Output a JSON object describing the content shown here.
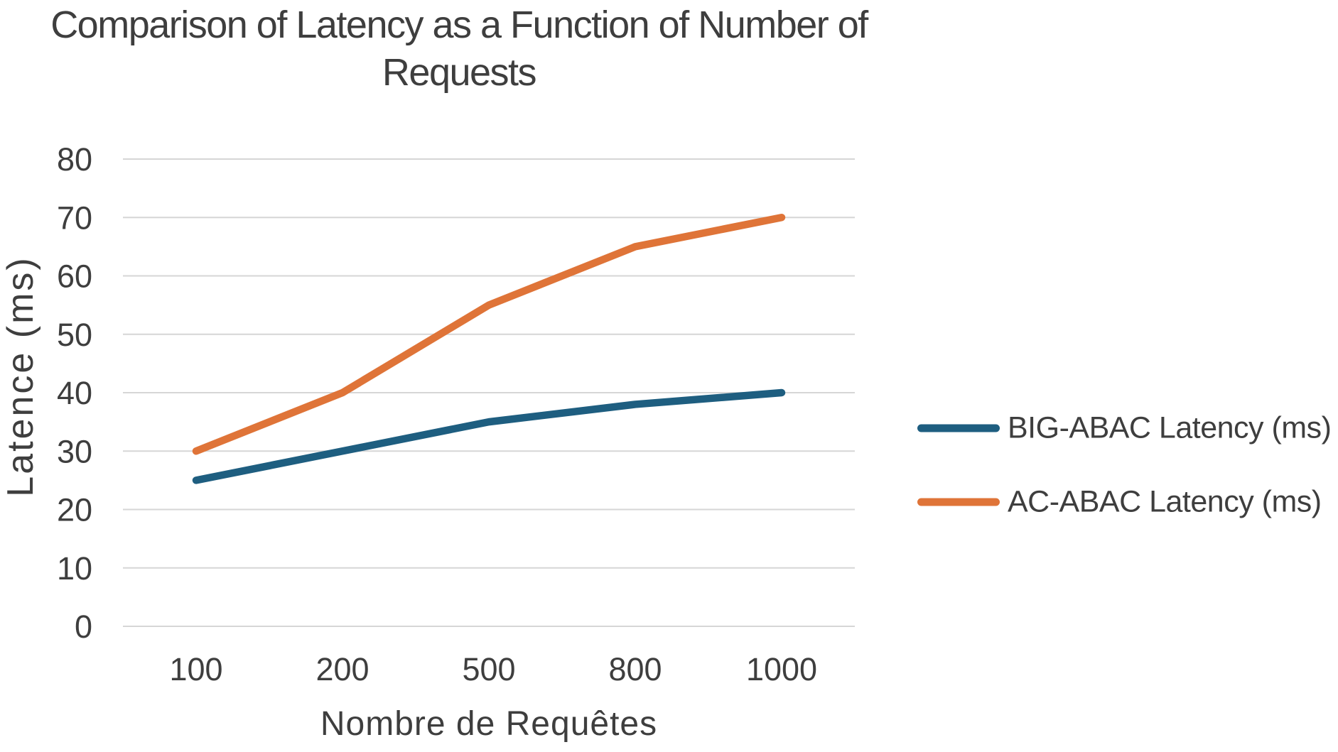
{
  "chart": {
    "title_lines": [
      "Comparison of Latency as a Function of Number of",
      "Requests"
    ],
    "x_axis_title": "Nombre de Requêtes",
    "y_axis_title": "Latence (ms)"
  },
  "legend": {
    "position": "right",
    "items": [
      {
        "label": "BIG-ABAC Latency (ms)",
        "color": "#1E5E80"
      },
      {
        "label": "AC-ABAC Latency (ms)",
        "color": "#DF7438"
      }
    ]
  },
  "chart_data": {
    "type": "line",
    "title": "Comparison of Latency as a Function of Number of Requests",
    "xlabel": "Nombre de Requêtes",
    "ylabel": "Latence (ms)",
    "categories": [
      "100",
      "200",
      "500",
      "800",
      "1000"
    ],
    "series": [
      {
        "name": "BIG-ABAC Latency (ms)",
        "color": "#1E5E80",
        "values": [
          25,
          30,
          35,
          38,
          40
        ]
      },
      {
        "name": "AC-ABAC Latency (ms)",
        "color": "#DF7438",
        "values": [
          30,
          40,
          55,
          65,
          70
        ]
      }
    ],
    "ylim": [
      0,
      80
    ],
    "y_ticks": [
      0,
      10,
      20,
      30,
      40,
      50,
      60,
      70,
      80
    ],
    "grid": "horizontal",
    "legend_position": "right"
  },
  "colors": {
    "grid": "#D6D6D6",
    "text": "#3E3E3E",
    "background": "#FFFFFF"
  }
}
